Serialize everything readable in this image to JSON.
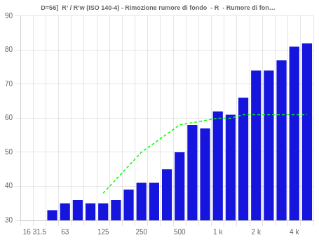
{
  "chart_data": {
    "type": "bar",
    "title": "D=56]  R’ / R’w (ISO 140-4) - Rimozione rumore di fondo  - R  - Rumore di fon…",
    "categories": [
      "16",
      "31.5",
      null,
      "63",
      null,
      null,
      "125",
      null,
      null,
      "250",
      null,
      null,
      "500",
      null,
      null,
      "1 k",
      null,
      null,
      "2 k",
      null,
      null,
      "4 k",
      null
    ],
    "series": [
      {
        "type": "bar",
        "color": "#1515DD",
        "values": [
          null,
          null,
          33,
          35,
          36,
          35,
          35,
          36,
          39,
          41,
          41,
          45,
          50,
          58,
          57,
          62,
          61,
          66,
          74,
          74,
          77,
          81,
          82
        ]
      },
      {
        "type": "line",
        "color": "lime",
        "line_style": "dashed",
        "values": [
          null,
          null,
          null,
          null,
          null,
          null,
          38,
          null,
          null,
          50,
          null,
          null,
          58,
          null,
          null,
          60,
          60,
          61,
          61,
          61,
          61,
          61,
          61
        ]
      }
    ],
    "ylim": [
      30,
      90
    ],
    "yticks": [
      30,
      40,
      50,
      60,
      70,
      80,
      90
    ],
    "grid": true
  }
}
